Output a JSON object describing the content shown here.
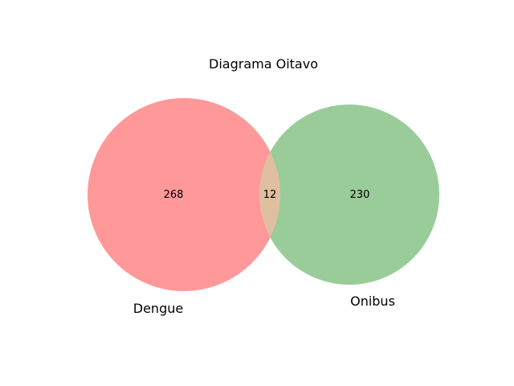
{
  "title": "Diagrama Oitavo",
  "sets": [
    {
      "name": "Dengue",
      "color": "#ff9999"
    },
    {
      "name": "Onibus",
      "color": "#99cc99"
    }
  ],
  "overlap_color": "#dfbf9f",
  "regions": {
    "only_a": "268",
    "both": "12",
    "only_b": "230"
  },
  "chart_data": {
    "type": "venn",
    "title": "Diagrama Oitavo",
    "sets": [
      "Dengue",
      "Onibus"
    ],
    "values": {
      "Dengue only": 268,
      "Dengue & Onibus": 12,
      "Onibus only": 230
    }
  }
}
